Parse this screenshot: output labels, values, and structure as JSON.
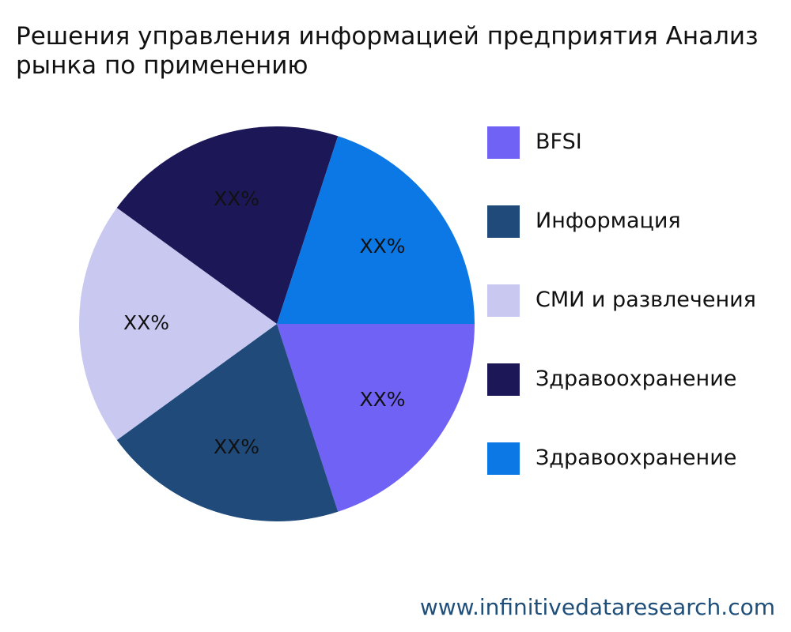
{
  "chart_data": {
    "type": "pie",
    "title": "Решения управления информацией предприятия Анализ\nрынка по применению",
    "categories": [
      "BFSI",
      "Информация",
      "СМИ и развлечения",
      "Здравоохранение",
      "Здравоохранение"
    ],
    "values": [
      20,
      20,
      20,
      20,
      20
    ],
    "data_labels": [
      "XX%",
      "XX%",
      "XX%",
      "XX%",
      "XX%"
    ],
    "colors": [
      "#7062f4",
      "#1f4a7a",
      "#c8c8f0",
      "#1c1756",
      "#0b78e6"
    ],
    "legend_position": "right",
    "start_angle_deg": 0,
    "direction": "clockwise"
  },
  "watermark": "www.infinitivedataresearch.com"
}
